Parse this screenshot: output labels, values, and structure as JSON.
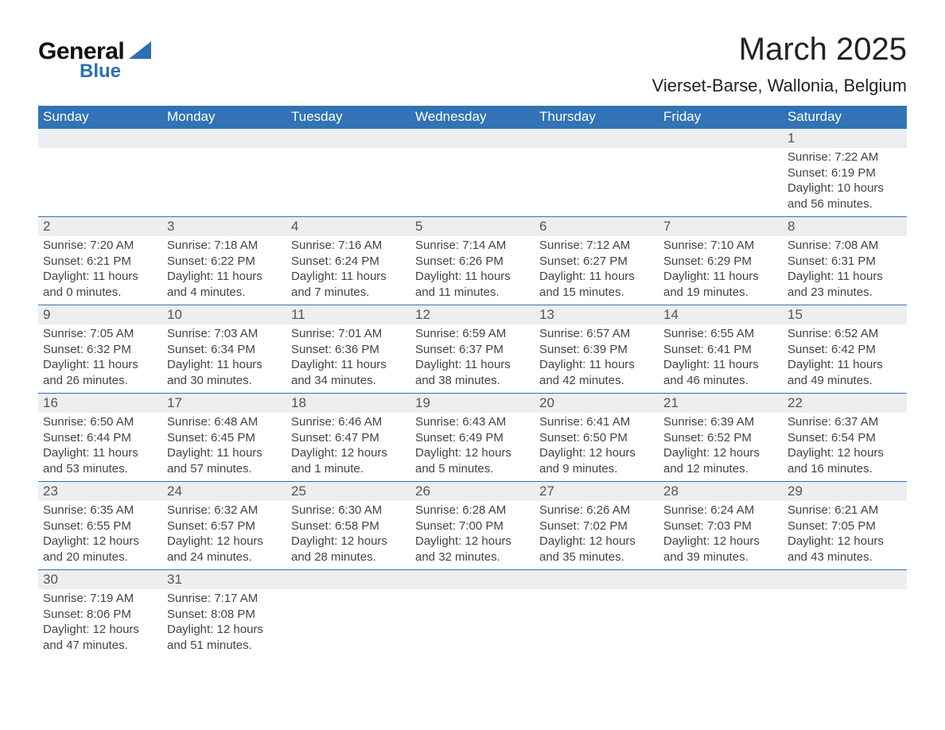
{
  "logo": {
    "general": "General",
    "blue": "Blue",
    "triangle_color": "#2c6fb2"
  },
  "title": "March 2025",
  "subtitle": "Vierset-Barse, Wallonia, Belgium",
  "day_headers": [
    "Sunday",
    "Monday",
    "Tuesday",
    "Wednesday",
    "Thursday",
    "Friday",
    "Saturday"
  ],
  "colors": {
    "header_bg": "#3173b4",
    "header_text": "#ffffff",
    "daynum_bg": "#eceeef",
    "border": "#3173b4",
    "text": "#333333"
  },
  "weeks": [
    {
      "days": [
        null,
        null,
        null,
        null,
        null,
        null,
        {
          "n": "1",
          "sunrise": "Sunrise: 7:22 AM",
          "sunset": "Sunset: 6:19 PM",
          "dl1": "Daylight: 10 hours",
          "dl2": "and 56 minutes."
        }
      ]
    },
    {
      "days": [
        {
          "n": "2",
          "sunrise": "Sunrise: 7:20 AM",
          "sunset": "Sunset: 6:21 PM",
          "dl1": "Daylight: 11 hours",
          "dl2": "and 0 minutes."
        },
        {
          "n": "3",
          "sunrise": "Sunrise: 7:18 AM",
          "sunset": "Sunset: 6:22 PM",
          "dl1": "Daylight: 11 hours",
          "dl2": "and 4 minutes."
        },
        {
          "n": "4",
          "sunrise": "Sunrise: 7:16 AM",
          "sunset": "Sunset: 6:24 PM",
          "dl1": "Daylight: 11 hours",
          "dl2": "and 7 minutes."
        },
        {
          "n": "5",
          "sunrise": "Sunrise: 7:14 AM",
          "sunset": "Sunset: 6:26 PM",
          "dl1": "Daylight: 11 hours",
          "dl2": "and 11 minutes."
        },
        {
          "n": "6",
          "sunrise": "Sunrise: 7:12 AM",
          "sunset": "Sunset: 6:27 PM",
          "dl1": "Daylight: 11 hours",
          "dl2": "and 15 minutes."
        },
        {
          "n": "7",
          "sunrise": "Sunrise: 7:10 AM",
          "sunset": "Sunset: 6:29 PM",
          "dl1": "Daylight: 11 hours",
          "dl2": "and 19 minutes."
        },
        {
          "n": "8",
          "sunrise": "Sunrise: 7:08 AM",
          "sunset": "Sunset: 6:31 PM",
          "dl1": "Daylight: 11 hours",
          "dl2": "and 23 minutes."
        }
      ]
    },
    {
      "days": [
        {
          "n": "9",
          "sunrise": "Sunrise: 7:05 AM",
          "sunset": "Sunset: 6:32 PM",
          "dl1": "Daylight: 11 hours",
          "dl2": "and 26 minutes."
        },
        {
          "n": "10",
          "sunrise": "Sunrise: 7:03 AM",
          "sunset": "Sunset: 6:34 PM",
          "dl1": "Daylight: 11 hours",
          "dl2": "and 30 minutes."
        },
        {
          "n": "11",
          "sunrise": "Sunrise: 7:01 AM",
          "sunset": "Sunset: 6:36 PM",
          "dl1": "Daylight: 11 hours",
          "dl2": "and 34 minutes."
        },
        {
          "n": "12",
          "sunrise": "Sunrise: 6:59 AM",
          "sunset": "Sunset: 6:37 PM",
          "dl1": "Daylight: 11 hours",
          "dl2": "and 38 minutes."
        },
        {
          "n": "13",
          "sunrise": "Sunrise: 6:57 AM",
          "sunset": "Sunset: 6:39 PM",
          "dl1": "Daylight: 11 hours",
          "dl2": "and 42 minutes."
        },
        {
          "n": "14",
          "sunrise": "Sunrise: 6:55 AM",
          "sunset": "Sunset: 6:41 PM",
          "dl1": "Daylight: 11 hours",
          "dl2": "and 46 minutes."
        },
        {
          "n": "15",
          "sunrise": "Sunrise: 6:52 AM",
          "sunset": "Sunset: 6:42 PM",
          "dl1": "Daylight: 11 hours",
          "dl2": "and 49 minutes."
        }
      ]
    },
    {
      "days": [
        {
          "n": "16",
          "sunrise": "Sunrise: 6:50 AM",
          "sunset": "Sunset: 6:44 PM",
          "dl1": "Daylight: 11 hours",
          "dl2": "and 53 minutes."
        },
        {
          "n": "17",
          "sunrise": "Sunrise: 6:48 AM",
          "sunset": "Sunset: 6:45 PM",
          "dl1": "Daylight: 11 hours",
          "dl2": "and 57 minutes."
        },
        {
          "n": "18",
          "sunrise": "Sunrise: 6:46 AM",
          "sunset": "Sunset: 6:47 PM",
          "dl1": "Daylight: 12 hours",
          "dl2": "and 1 minute."
        },
        {
          "n": "19",
          "sunrise": "Sunrise: 6:43 AM",
          "sunset": "Sunset: 6:49 PM",
          "dl1": "Daylight: 12 hours",
          "dl2": "and 5 minutes."
        },
        {
          "n": "20",
          "sunrise": "Sunrise: 6:41 AM",
          "sunset": "Sunset: 6:50 PM",
          "dl1": "Daylight: 12 hours",
          "dl2": "and 9 minutes."
        },
        {
          "n": "21",
          "sunrise": "Sunrise: 6:39 AM",
          "sunset": "Sunset: 6:52 PM",
          "dl1": "Daylight: 12 hours",
          "dl2": "and 12 minutes."
        },
        {
          "n": "22",
          "sunrise": "Sunrise: 6:37 AM",
          "sunset": "Sunset: 6:54 PM",
          "dl1": "Daylight: 12 hours",
          "dl2": "and 16 minutes."
        }
      ]
    },
    {
      "days": [
        {
          "n": "23",
          "sunrise": "Sunrise: 6:35 AM",
          "sunset": "Sunset: 6:55 PM",
          "dl1": "Daylight: 12 hours",
          "dl2": "and 20 minutes."
        },
        {
          "n": "24",
          "sunrise": "Sunrise: 6:32 AM",
          "sunset": "Sunset: 6:57 PM",
          "dl1": "Daylight: 12 hours",
          "dl2": "and 24 minutes."
        },
        {
          "n": "25",
          "sunrise": "Sunrise: 6:30 AM",
          "sunset": "Sunset: 6:58 PM",
          "dl1": "Daylight: 12 hours",
          "dl2": "and 28 minutes."
        },
        {
          "n": "26",
          "sunrise": "Sunrise: 6:28 AM",
          "sunset": "Sunset: 7:00 PM",
          "dl1": "Daylight: 12 hours",
          "dl2": "and 32 minutes."
        },
        {
          "n": "27",
          "sunrise": "Sunrise: 6:26 AM",
          "sunset": "Sunset: 7:02 PM",
          "dl1": "Daylight: 12 hours",
          "dl2": "and 35 minutes."
        },
        {
          "n": "28",
          "sunrise": "Sunrise: 6:24 AM",
          "sunset": "Sunset: 7:03 PM",
          "dl1": "Daylight: 12 hours",
          "dl2": "and 39 minutes."
        },
        {
          "n": "29",
          "sunrise": "Sunrise: 6:21 AM",
          "sunset": "Sunset: 7:05 PM",
          "dl1": "Daylight: 12 hours",
          "dl2": "and 43 minutes."
        }
      ]
    },
    {
      "days": [
        {
          "n": "30",
          "sunrise": "Sunrise: 7:19 AM",
          "sunset": "Sunset: 8:06 PM",
          "dl1": "Daylight: 12 hours",
          "dl2": "and 47 minutes."
        },
        {
          "n": "31",
          "sunrise": "Sunrise: 7:17 AM",
          "sunset": "Sunset: 8:08 PM",
          "dl1": "Daylight: 12 hours",
          "dl2": "and 51 minutes."
        },
        null,
        null,
        null,
        null,
        null
      ]
    }
  ]
}
